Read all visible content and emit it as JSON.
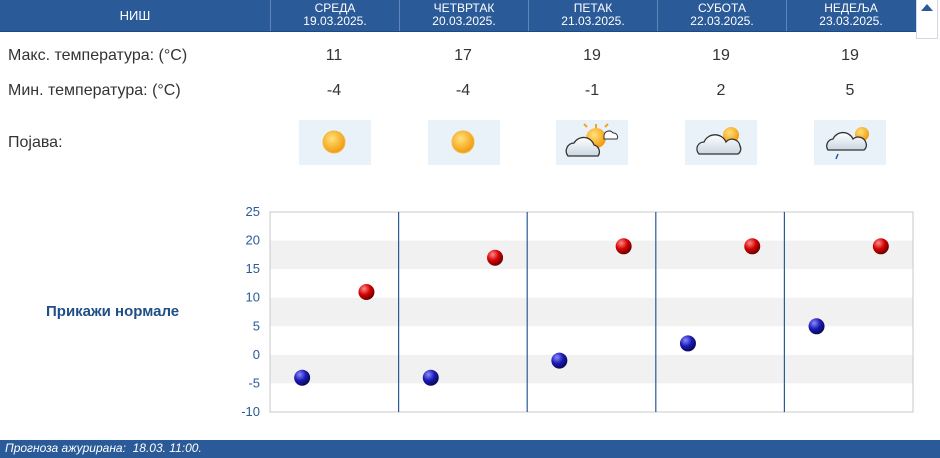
{
  "header": {
    "city": "НИШ",
    "days": [
      {
        "name": "СРЕДА",
        "date": "19.03.2025."
      },
      {
        "name": "ЧЕТВРТАК",
        "date": "20.03.2025."
      },
      {
        "name": "ПЕТАК",
        "date": "21.03.2025."
      },
      {
        "name": "СУБОТА",
        "date": "22.03.2025."
      },
      {
        "name": "НЕДЕЉА",
        "date": "23.03.2025."
      }
    ]
  },
  "rows": {
    "max_label": "Макс. температура: (°C)",
    "min_label": "Мин. температура: (°C)",
    "phen_label": "Појава:",
    "max": [
      "11",
      "17",
      "19",
      "19",
      "19"
    ],
    "min": [
      "-4",
      "-4",
      "-1",
      "2",
      "5"
    ],
    "icons": [
      "sunny-icon",
      "sunny-icon",
      "partly-cloudy-icon",
      "mostly-cloudy-icon",
      "cloudy-light-rain-icon"
    ]
  },
  "normals_link": "Прикажи нормале",
  "footer": {
    "label": "Прогноза ажурирана:",
    "value": "18.03. 11:00."
  },
  "colors": {
    "header_bg": "#2a5a98",
    "max_dot": "#cc0000",
    "min_dot": "#1a1ab4"
  },
  "chart_data": {
    "type": "scatter",
    "categories": [
      "19.03.2025.",
      "20.03.2025.",
      "21.03.2025.",
      "22.03.2025.",
      "23.03.2025."
    ],
    "series": [
      {
        "values": [
          11,
          17,
          19,
          19,
          19
        ],
        "color": "#cc0000"
      },
      {
        "values": [
          -4,
          -4,
          -1,
          2,
          5
        ],
        "color": "#1a1ab4"
      }
    ],
    "ylim": [
      -10,
      25
    ],
    "yticks": [
      "25",
      "20",
      "15",
      "10",
      "5",
      "0",
      "-5",
      "-10"
    ],
    "grid": "alternating horizontal bands, vertical day separators"
  }
}
